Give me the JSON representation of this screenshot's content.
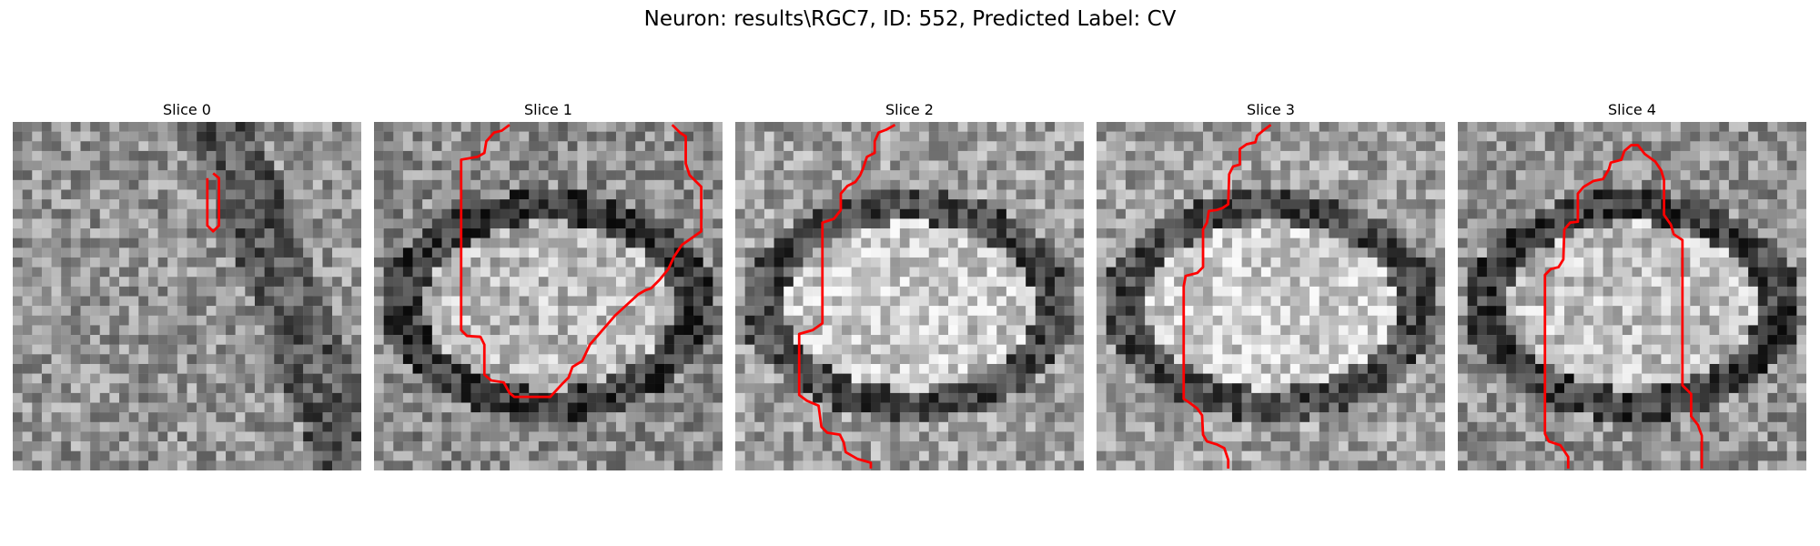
{
  "figure": {
    "title": "Neuron: results\\RGC7, ID: 552, Predicted Label: CV"
  },
  "slices": [
    {
      "title": "Slice 0",
      "seed": 11,
      "base": 148,
      "mode": "texture",
      "contour": [
        [
          20.7,
          5.3
        ],
        [
          21.3,
          5.8
        ],
        [
          21.3,
          10.7
        ],
        [
          20.7,
          11.3
        ],
        [
          20.1,
          10.7
        ],
        [
          20.1,
          5.8
        ]
      ]
    },
    {
      "title": "Slice 1",
      "seed": 23,
      "base": 140,
      "mode": "ellipse",
      "contour": [
        [
          14.0,
          0.3
        ],
        [
          13.2,
          0.9
        ],
        [
          12.4,
          1.1
        ],
        [
          11.6,
          2.0
        ],
        [
          11.4,
          3.2
        ],
        [
          10.7,
          3.6
        ],
        [
          9.0,
          3.9
        ],
        [
          9.0,
          21.5
        ],
        [
          9.6,
          22.1
        ],
        [
          11.0,
          22.2
        ],
        [
          11.4,
          23.0
        ],
        [
          11.4,
          26.1
        ],
        [
          12.1,
          26.7
        ],
        [
          13.4,
          26.9
        ],
        [
          14.0,
          28.0
        ],
        [
          14.5,
          28.4
        ],
        [
          18.2,
          28.4
        ],
        [
          19.4,
          27.1
        ],
        [
          20.1,
          26.4
        ],
        [
          20.5,
          25.3
        ],
        [
          21.5,
          24.7
        ],
        [
          22.3,
          23.0
        ],
        [
          24.9,
          20.0
        ],
        [
          27.3,
          17.8
        ],
        [
          28.0,
          17.4
        ],
        [
          28.6,
          17.2
        ],
        [
          29.5,
          16.3
        ],
        [
          30.4,
          15.2
        ],
        [
          31.0,
          13.9
        ],
        [
          31.8,
          12.7
        ],
        [
          33.8,
          11.3
        ],
        [
          33.8,
          6.7
        ],
        [
          32.6,
          5.5
        ],
        [
          32.2,
          4.3
        ],
        [
          32.2,
          1.5
        ],
        [
          31.6,
          1.1
        ],
        [
          30.8,
          0.3
        ]
      ]
    },
    {
      "title": "Slice 2",
      "seed": 37,
      "base": 158,
      "mode": "ellipse",
      "contour": [
        [
          16.5,
          0.3
        ],
        [
          15.6,
          0.8
        ],
        [
          14.8,
          1.1
        ],
        [
          14.4,
          2.0
        ],
        [
          14.4,
          3.2
        ],
        [
          13.6,
          3.6
        ],
        [
          13.2,
          4.8
        ],
        [
          12.9,
          5.5
        ],
        [
          12.4,
          6.2
        ],
        [
          11.6,
          6.6
        ],
        [
          10.9,
          7.4
        ],
        [
          10.9,
          9.1
        ],
        [
          10.2,
          10.0
        ],
        [
          9.0,
          10.4
        ],
        [
          9.0,
          20.8
        ],
        [
          8.0,
          21.5
        ],
        [
          6.6,
          21.9
        ],
        [
          6.6,
          28.2
        ],
        [
          7.4,
          28.8
        ],
        [
          8.6,
          29.3
        ],
        [
          8.9,
          31.5
        ],
        [
          9.5,
          32.1
        ],
        [
          10.8,
          32.3
        ],
        [
          11.2,
          33.1
        ],
        [
          11.4,
          34.1
        ],
        [
          12.6,
          34.8
        ],
        [
          14.0,
          35.2
        ],
        [
          14.0,
          35.8
        ]
      ]
    },
    {
      "title": "Slice 3",
      "seed": 53,
      "base": 160,
      "mode": "ellipse",
      "contour": [
        [
          18.0,
          0.3
        ],
        [
          17.2,
          0.9
        ],
        [
          16.6,
          1.4
        ],
        [
          16.4,
          2.1
        ],
        [
          15.5,
          2.3
        ],
        [
          14.8,
          2.8
        ],
        [
          14.8,
          4.4
        ],
        [
          14.1,
          4.6
        ],
        [
          13.7,
          5.4
        ],
        [
          13.6,
          8.5
        ],
        [
          13.0,
          8.9
        ],
        [
          12.4,
          9.1
        ],
        [
          11.6,
          9.2
        ],
        [
          11.4,
          10.4
        ],
        [
          11.0,
          11.1
        ],
        [
          11.0,
          15.0
        ],
        [
          10.4,
          15.6
        ],
        [
          9.2,
          15.9
        ],
        [
          9.0,
          17.0
        ],
        [
          9.0,
          28.6
        ],
        [
          9.6,
          29.0
        ],
        [
          10.4,
          29.6
        ],
        [
          10.9,
          30.3
        ],
        [
          11.0,
          32.3
        ],
        [
          11.4,
          33.0
        ],
        [
          12.4,
          33.3
        ],
        [
          13.2,
          33.7
        ],
        [
          13.6,
          34.9
        ],
        [
          13.6,
          35.8
        ]
      ]
    },
    {
      "title": "Slice 4",
      "seed": 71,
      "base": 146,
      "mode": "ellipse",
      "contour": [
        [
          11.4,
          35.8
        ],
        [
          11.4,
          34.6
        ],
        [
          10.6,
          33.4
        ],
        [
          9.4,
          33.0
        ],
        [
          9.0,
          32.2
        ],
        [
          9.0,
          15.8
        ],
        [
          9.6,
          15.2
        ],
        [
          10.4,
          15.0
        ],
        [
          10.9,
          14.2
        ],
        [
          11.0,
          11.1
        ],
        [
          11.6,
          10.4
        ],
        [
          12.4,
          10.3
        ],
        [
          12.4,
          7.4
        ],
        [
          13.0,
          6.7
        ],
        [
          14.0,
          6.1
        ],
        [
          15.0,
          5.9
        ],
        [
          15.6,
          4.9
        ],
        [
          15.8,
          4.2
        ],
        [
          16.9,
          3.9
        ],
        [
          17.2,
          3.0
        ],
        [
          17.9,
          2.4
        ],
        [
          18.6,
          2.4
        ],
        [
          19.3,
          3.3
        ],
        [
          20.4,
          4.1
        ],
        [
          21.0,
          5.0
        ],
        [
          21.3,
          6.0
        ],
        [
          21.3,
          9.6
        ],
        [
          22.0,
          10.6
        ],
        [
          22.3,
          11.6
        ],
        [
          23.2,
          12.2
        ],
        [
          23.2,
          27.2
        ],
        [
          24.1,
          28.1
        ],
        [
          24.1,
          30.4
        ],
        [
          24.8,
          31.3
        ],
        [
          25.2,
          32.4
        ],
        [
          25.2,
          35.8
        ]
      ]
    }
  ]
}
